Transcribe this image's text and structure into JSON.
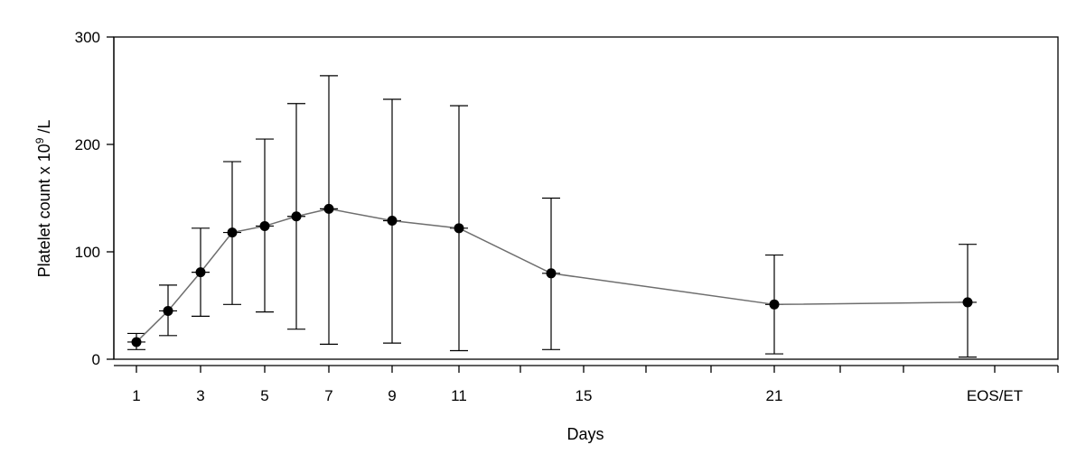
{
  "chart_data": {
    "type": "line",
    "title": "",
    "xlabel": "Days",
    "ylabel": "Platelet count x 10",
    "ylabel_superscript": "9",
    "ylabel_suffix": " /L",
    "ylim": [
      0,
      300
    ],
    "yticks": [
      0,
      100,
      200,
      300
    ],
    "grid": false,
    "categories": [
      "1",
      "2",
      "3",
      "4",
      "5",
      "6",
      "7",
      "9",
      "11",
      "14",
      "21",
      "EOS/ET"
    ],
    "tick_labels": [
      "1",
      "3",
      "5",
      "7",
      "9",
      "11",
      "15",
      "21",
      "EOS/ET"
    ],
    "series": [
      {
        "values": [
          16,
          45,
          81,
          118,
          124,
          133,
          140,
          129,
          122,
          80,
          51,
          53
        ],
        "lower": [
          9,
          22,
          40,
          51,
          44,
          28,
          14,
          15,
          8,
          9,
          5,
          2
        ],
        "upper": [
          24,
          69,
          122,
          184,
          205,
          238,
          264,
          242,
          236,
          150,
          97,
          107
        ]
      }
    ],
    "colors": {
      "line": "#6e6e6e",
      "marker": "#000000",
      "errorbar": "#000000",
      "axis": "#000000"
    }
  }
}
